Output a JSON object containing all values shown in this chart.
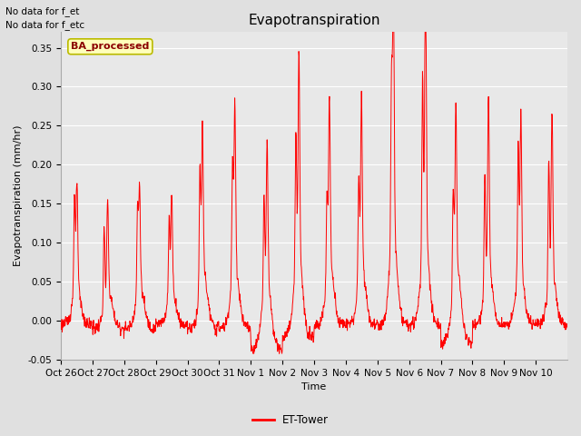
{
  "title": "Evapotranspiration",
  "xlabel": "Time",
  "ylabel": "Evapotranspiration (mm/hr)",
  "ylim": [
    -0.05,
    0.37
  ],
  "yticks": [
    -0.05,
    0.0,
    0.05,
    0.1,
    0.15,
    0.2,
    0.25,
    0.3,
    0.35
  ],
  "bg_color": "#e0e0e0",
  "plot_bg_color": "#e8e8e8",
  "line_color": "red",
  "line_width": 0.7,
  "title_fontsize": 11,
  "axis_fontsize": 8,
  "tick_fontsize": 7.5,
  "top_left_text1": "No data for f_et",
  "top_left_text2": "No data for f_etc",
  "legend_label": "ET-Tower",
  "legend_box_label": "BA_processed",
  "legend_box_color": "#ffffbb",
  "legend_box_edge_color": "#bbbb00",
  "x_tick_labels": [
    "Oct 26",
    "Oct 27",
    "Oct 28",
    "Oct 29",
    "Oct 30",
    "Oct 31",
    "Nov 1",
    "Nov 2",
    "Nov 3",
    "Nov 4",
    "Nov 5",
    "Nov 6",
    "Nov 7",
    "Nov 8",
    "Nov 9",
    "Nov 10"
  ],
  "n_points_per_day": 96,
  "day_peaks": [
    0.135,
    0.115,
    0.13,
    0.125,
    0.19,
    0.21,
    0.17,
    0.26,
    0.215,
    0.215,
    0.325,
    0.335,
    0.21,
    0.215,
    0.2,
    0.2
  ],
  "day_sub_peaks": [
    0.12,
    0.1,
    0.11,
    0.1,
    0.155,
    0.15,
    0.12,
    0.17,
    0.115,
    0.13,
    0.21,
    0.22,
    0.13,
    0.14,
    0.165,
    0.16
  ],
  "day_dips": [
    -0.005,
    -0.01,
    -0.01,
    -0.005,
    -0.01,
    -0.01,
    -0.04,
    -0.02,
    -0.005,
    -0.005,
    -0.005,
    -0.005,
    -0.03,
    -0.005,
    -0.005,
    -0.005
  ]
}
